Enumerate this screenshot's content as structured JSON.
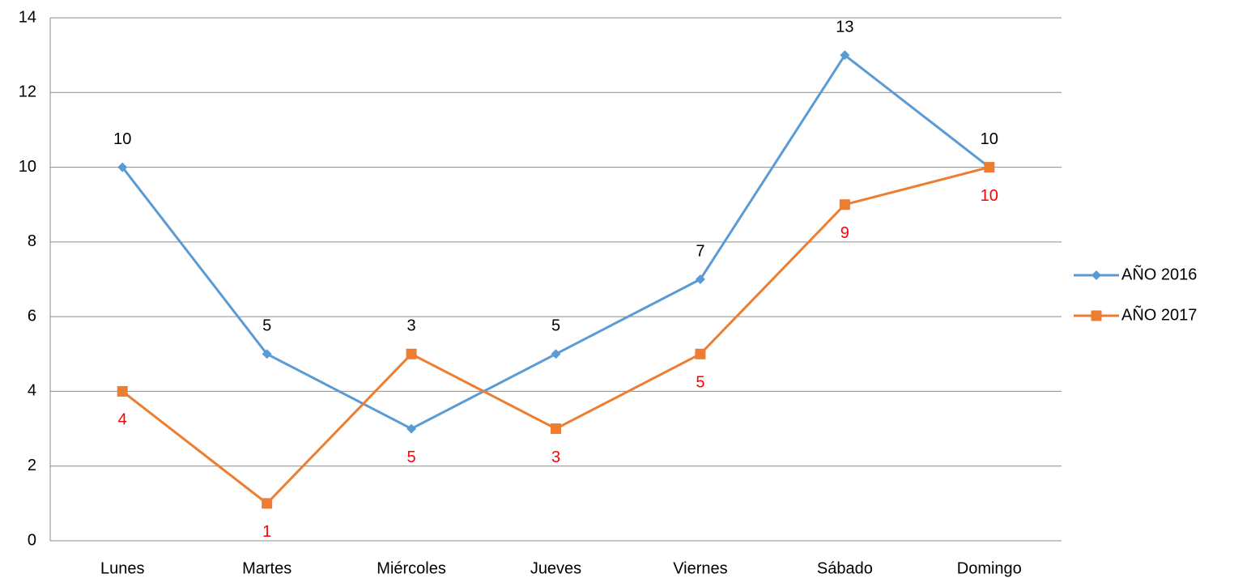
{
  "chart_data": {
    "type": "line",
    "categories": [
      "Lunes",
      "Martes",
      "Miércoles",
      "Jueves",
      "Viernes",
      "Sábado",
      "Domingo"
    ],
    "series": [
      {
        "name": "AÑO 2016",
        "color": "#5b9bd5",
        "marker": "diamond",
        "label_color": "#000000",
        "values": [
          10,
          5,
          3,
          5,
          7,
          13,
          10
        ]
      },
      {
        "name": "AÑO 2017",
        "color": "#ed7d31",
        "marker": "square",
        "label_color": "#ff0000",
        "values": [
          4,
          1,
          5,
          3,
          5,
          9,
          10
        ]
      }
    ],
    "ylim": [
      0,
      14
    ],
    "yticks": [
      0,
      2,
      4,
      6,
      8,
      10,
      12,
      14
    ],
    "grid": true,
    "legend": "right"
  }
}
